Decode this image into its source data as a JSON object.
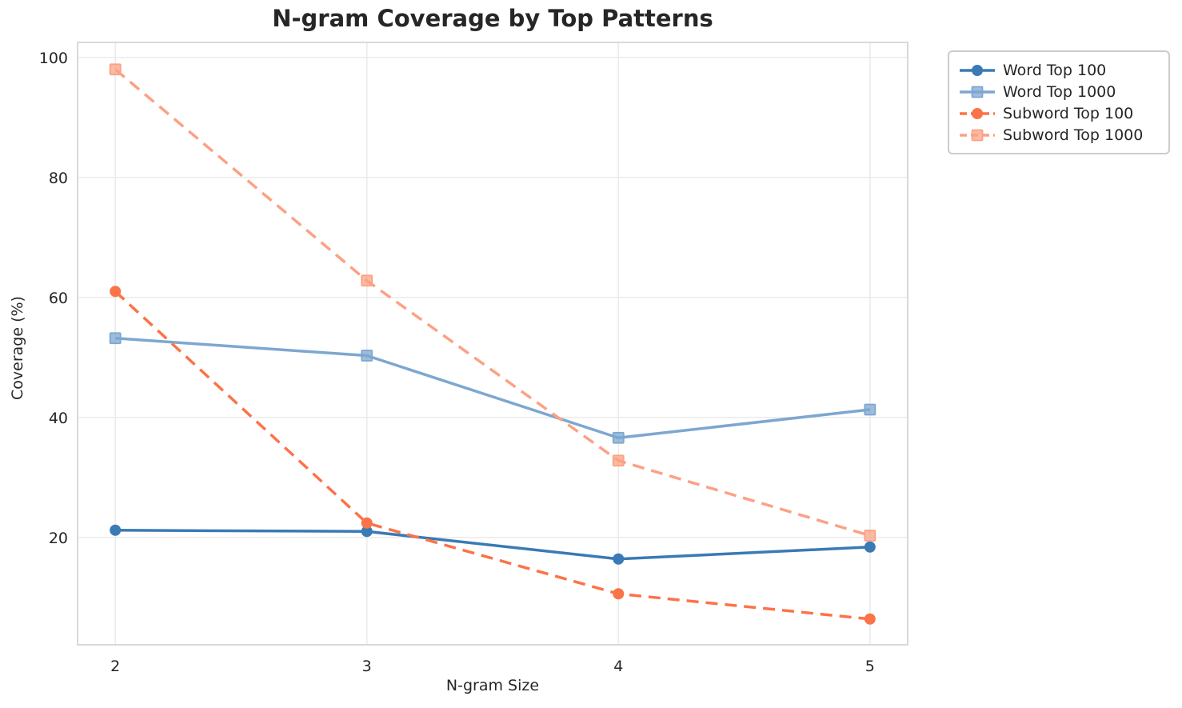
{
  "chart_data": {
    "type": "line",
    "title": "N-gram Coverage by Top Patterns",
    "xlabel": "N-gram Size",
    "ylabel": "Coverage (%)",
    "x": [
      2,
      3,
      4,
      5
    ],
    "x_tick_labels": [
      "2",
      "3",
      "4",
      "5"
    ],
    "y_ticks": [
      20,
      40,
      60,
      80,
      100
    ],
    "xlim": [
      1.85,
      5.15
    ],
    "ylim": [
      2.1,
      102.5
    ],
    "grid": true,
    "legend_position": "outside-top-right",
    "series": [
      {
        "name": "Word Top 100",
        "color": "#3a7ab5",
        "line_style": "solid",
        "marker": "circle",
        "values": [
          21.2,
          21.0,
          16.4,
          18.4
        ]
      },
      {
        "name": "Word Top 1000",
        "color": "#7da7d0",
        "line_style": "solid",
        "marker": "square",
        "values": [
          53.2,
          50.3,
          36.6,
          41.3
        ]
      },
      {
        "name": "Subword Top 100",
        "color": "#fb7348",
        "line_style": "dashed",
        "marker": "circle",
        "values": [
          61.0,
          22.4,
          10.6,
          6.4
        ]
      },
      {
        "name": "Subword Top 1000",
        "color": "#fca184",
        "line_style": "dashed",
        "marker": "square",
        "values": [
          98.0,
          62.8,
          32.8,
          20.3
        ]
      }
    ]
  },
  "style": {
    "grid_color": "#ebebeb",
    "spine_color": "#d9d9d9",
    "text_color": "#262626",
    "background": "#ffffff"
  }
}
